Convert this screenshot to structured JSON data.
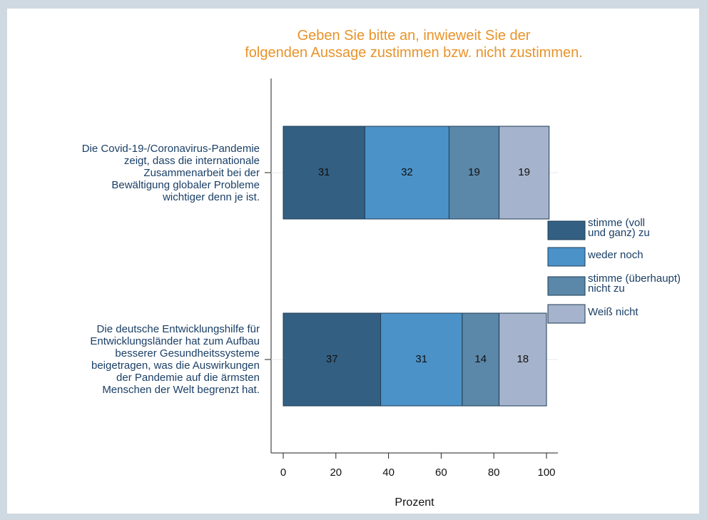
{
  "chart_data": {
    "type": "stacked-barh",
    "title": "Geben Sie bitte an, inwieweit Sie der\nfolgenden Aussage zustimmen bzw. nicht zustimmen.",
    "categories": [
      "Die Covid-19-/Coronavirus-Pandemie\nzeigt, dass die internationale\nZusammenarbeit bei der\nBewältigung globaler Probleme\nwichtiger denn je ist.",
      "Die deutsche Entwicklungshilfe für\nEntwicklungsländer hat zum Aufbau\nbesserer Gesundheitssysteme\nbeigetragen, was die Auswirkungen\nder Pandemie auf die ärmsten\nMenschen der Welt begrenzt hat."
    ],
    "series": [
      {
        "name": "stimme (voll\nund ganz) zu",
        "color": "#335f82",
        "values": [
          31,
          37
        ]
      },
      {
        "name": "weder noch",
        "color": "#4b92c8",
        "values": [
          32,
          31
        ]
      },
      {
        "name": "stimme (überhaupt)\nnicht zu",
        "color": "#5b87a8",
        "values": [
          19,
          14
        ]
      },
      {
        "name": "Weiß nicht",
        "color": "#a6b3cc",
        "values": [
          19,
          18
        ]
      }
    ],
    "xlabel": "Prozent",
    "xlim": [
      0,
      100
    ],
    "xticks": [
      0,
      20,
      40,
      60,
      80,
      100
    ],
    "title_color": "#e8932a",
    "grid": true,
    "legend": "right"
  }
}
